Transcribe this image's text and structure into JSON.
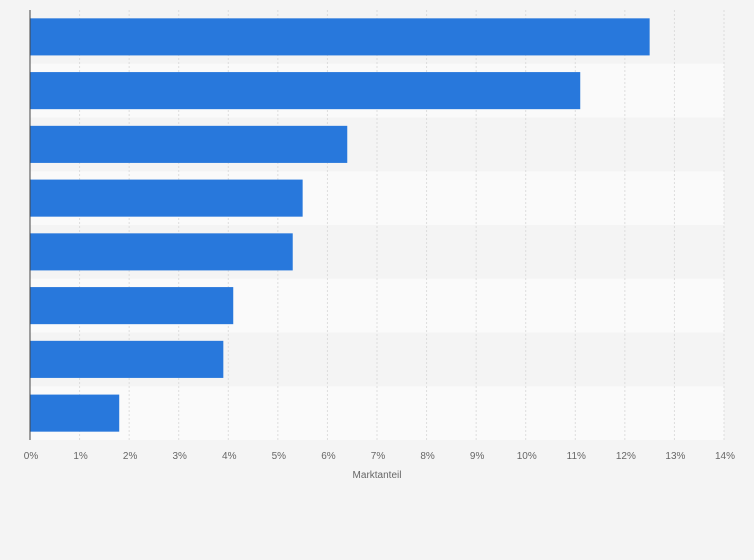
{
  "chart_data": {
    "type": "bar",
    "orientation": "horizontal",
    "title": "",
    "xlabel": "Marktanteil",
    "ylabel": "",
    "xlim": [
      0,
      14
    ],
    "x_ticks": [
      "0%",
      "1%",
      "2%",
      "3%",
      "4%",
      "5%",
      "6%",
      "7%",
      "8%",
      "9%",
      "10%",
      "11%",
      "12%",
      "13%",
      "14%"
    ],
    "values": [
      12.5,
      11.1,
      6.4,
      5.5,
      5.3,
      4.1,
      3.9,
      1.8
    ],
    "grid": true,
    "legend": "none",
    "colors": {
      "bar": "#2878dc",
      "band_dark": "#f4f4f4",
      "band_light": "#fafafa",
      "grid": "#dddddd",
      "axis": "#444444",
      "text": "#666666"
    }
  }
}
